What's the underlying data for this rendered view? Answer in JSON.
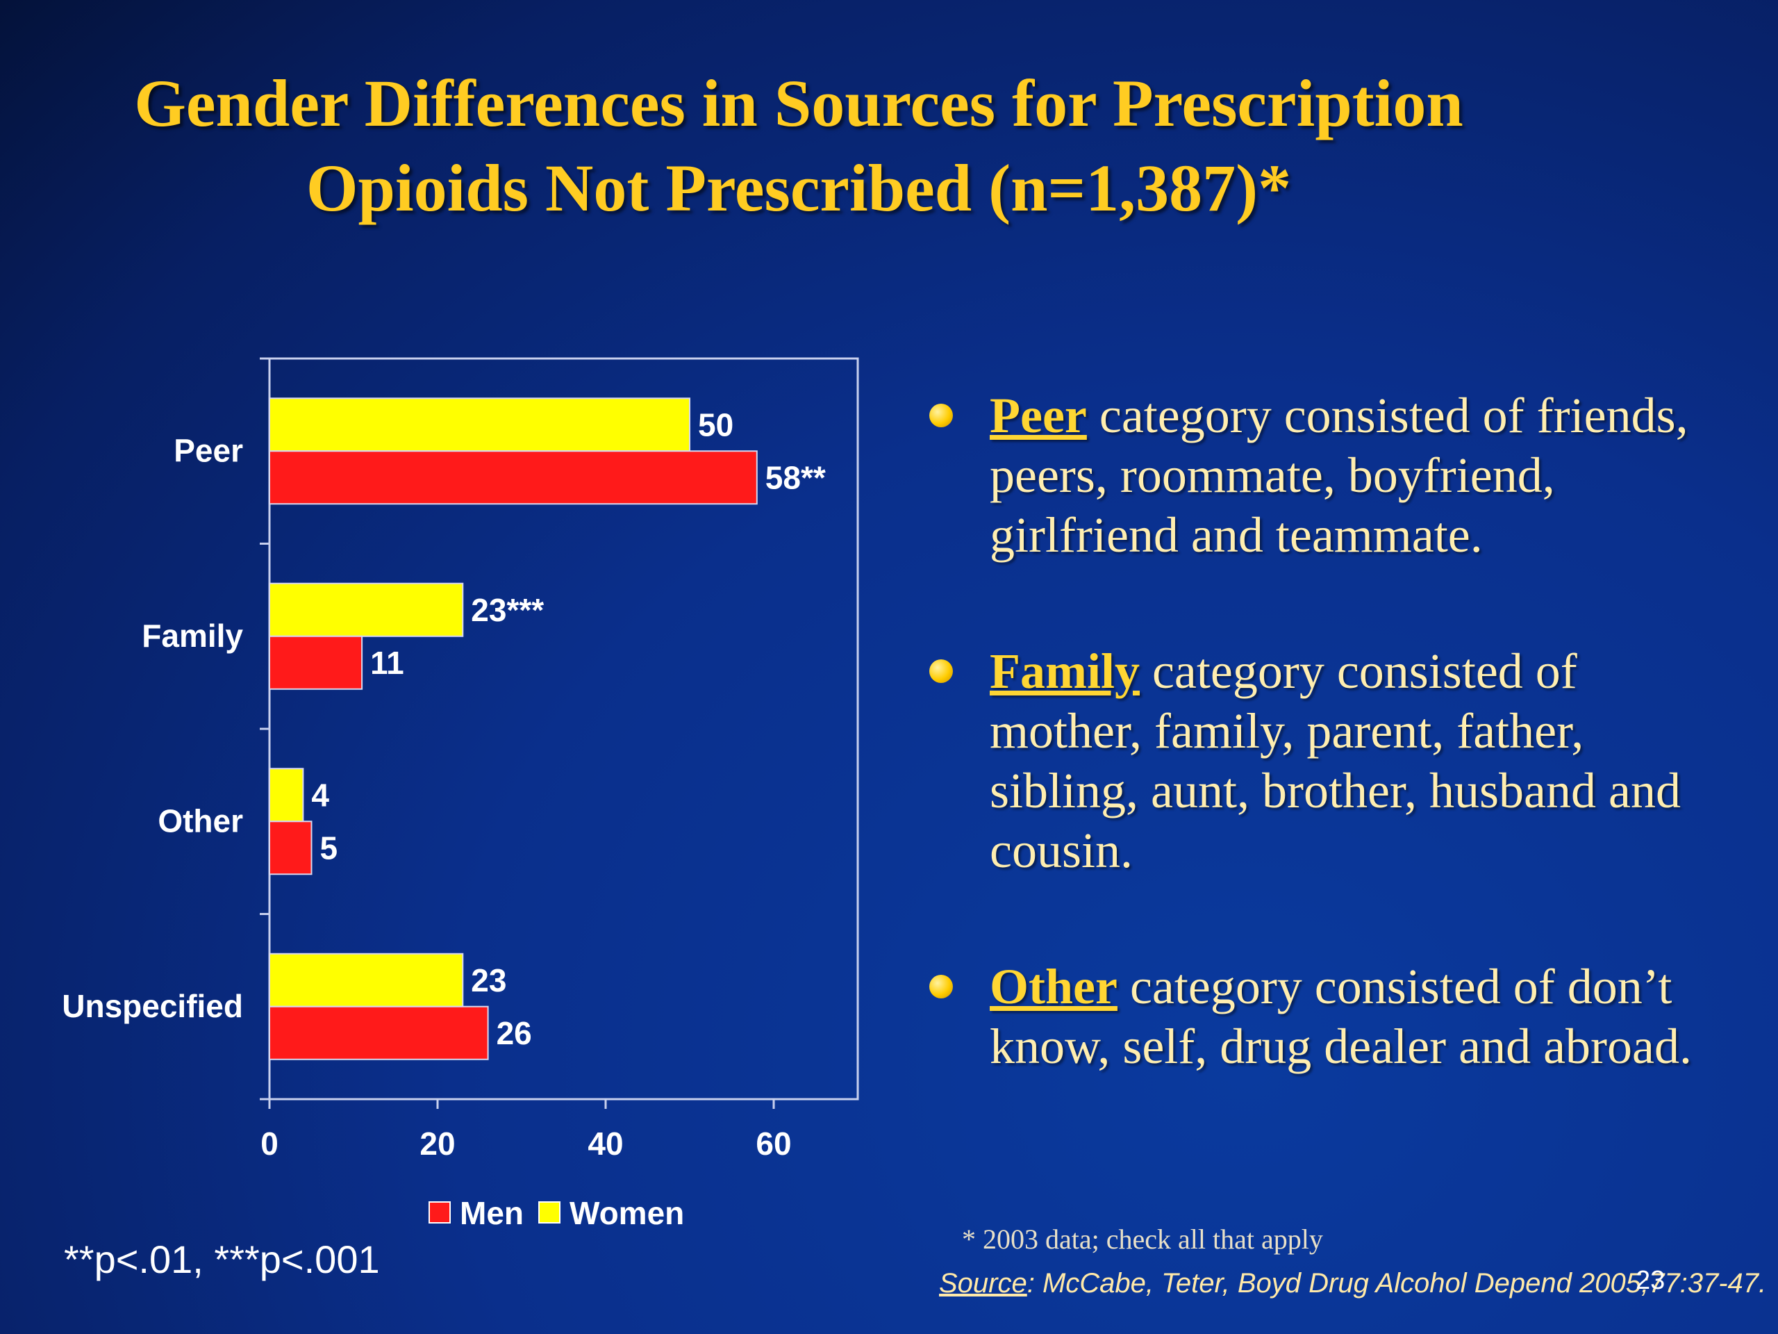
{
  "title": {
    "line1": "Gender Differences in Sources for Prescription",
    "line2": "Opioids Not Prescribed (n=1,387)*"
  },
  "chart_data": {
    "type": "bar",
    "orientation": "horizontal",
    "categories": [
      "Peer",
      "Family",
      "Other",
      "Unspecified"
    ],
    "series": [
      {
        "name": "Women",
        "color": "#ffff00",
        "values": [
          50,
          23,
          4,
          23
        ],
        "labels": [
          "50",
          "23***",
          "4",
          "23"
        ]
      },
      {
        "name": "Men",
        "color": "#ff1a1a",
        "values": [
          58,
          11,
          5,
          26
        ],
        "labels": [
          "58**",
          "11",
          "5",
          "26"
        ]
      }
    ],
    "xticks": [
      "0",
      "20",
      "40",
      "60"
    ],
    "xlim": [
      0,
      70
    ],
    "legend": [
      {
        "name": "Men",
        "color": "#ff1a1a"
      },
      {
        "name": "Women",
        "color": "#ffff00"
      }
    ],
    "legend_position": "bottom",
    "grid": false
  },
  "significance_note": "**p<.01, ***p<.001",
  "bullets": [
    {
      "term": "Peer",
      "text": " category consisted of friends, peers, roommate, boyfriend, girlfriend and teammate."
    },
    {
      "term": "Family",
      "text": " category consisted of mother, family, parent, father, sibling, aunt, brother, husband and cousin."
    },
    {
      "term": "Other",
      "text": " category consisted of don’t know, self, drug dealer and abroad."
    }
  ],
  "footnote": "* 2003 data; check all that apply",
  "source": {
    "label": "Source",
    "text": ": McCabe, Teter, Boyd Drug Alcohol Depend 2005;77:37-47."
  },
  "page_number": "23"
}
